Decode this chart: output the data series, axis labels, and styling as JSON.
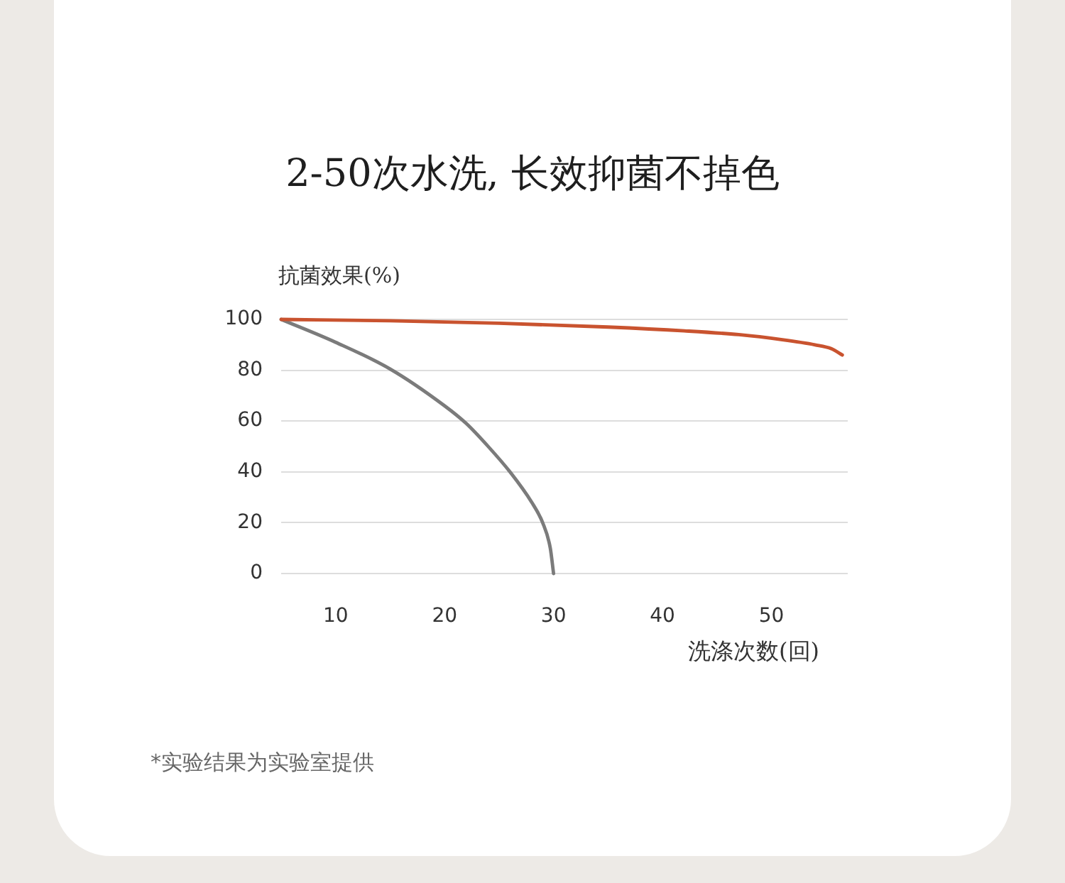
{
  "chart_data": {
    "type": "line",
    "title": "2-50次水洗, 长效抑菌不掉色",
    "ylabel": "抗菌效果(%)",
    "xlabel": "洗涤次数(回)",
    "annotations": [
      "*实验结果为实验室提供"
    ],
    "xlim": [
      5,
      57
    ],
    "xticks": [
      10,
      20,
      30,
      40,
      50
    ],
    "ylim": [
      0,
      100
    ],
    "yticks": [
      0,
      20,
      40,
      60,
      80,
      100
    ],
    "grid": "y",
    "legend": false,
    "marker": "none",
    "line_style": "solid",
    "series": [
      {
        "color": "#c9532f",
        "x": [
          5,
          15,
          25,
          35,
          42,
          47,
          51,
          54,
          55.5,
          56.5
        ],
        "values": [
          100,
          99.5,
          98.5,
          97,
          95.5,
          94,
          92,
          90,
          88.5,
          86
        ]
      },
      {
        "color": "#7b7b7b",
        "x": [
          5,
          10,
          15,
          20,
          22,
          24,
          26,
          28,
          29,
          29.7,
          30
        ],
        "values": [
          100,
          91,
          80.5,
          66,
          59,
          50,
          40,
          28,
          20,
          10,
          0
        ]
      }
    ]
  }
}
